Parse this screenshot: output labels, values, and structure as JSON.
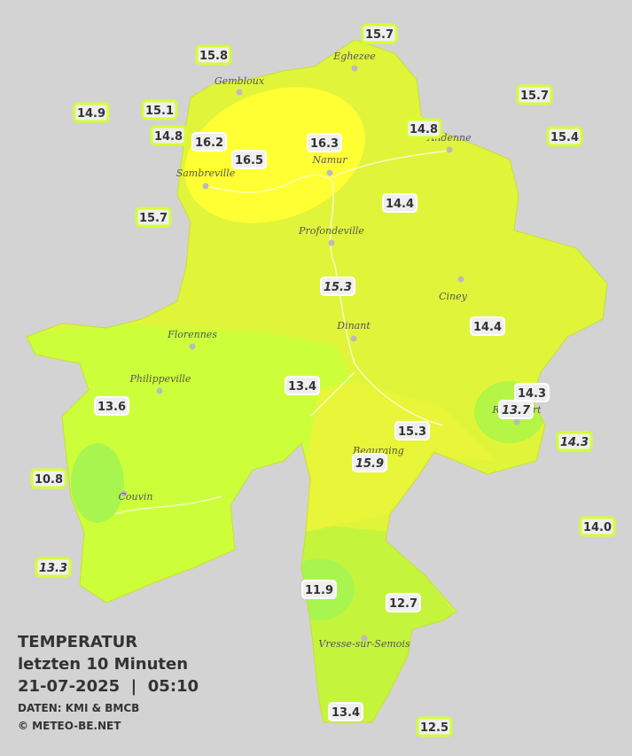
{
  "legend": {
    "title": "TEMPERATUR",
    "subtitle": "letzten 10 Minuten",
    "datetime": "21-07-2025  |  05:10",
    "source": "DATEN: KMI & BMCB",
    "credit": "© METEO-BE.NET"
  },
  "cities": [
    "Eghezee",
    "Gembloux",
    "Andenne",
    "Namur",
    "Sambreville",
    "Profondeville",
    "Ciney",
    "Dinant",
    "Florennes",
    "Philippeville",
    "Rochefort",
    "Beauraing",
    "Couvin",
    "Vresse-sur-Semois"
  ],
  "stations": [
    "15.7",
    "15.8",
    "15.7",
    "14.9",
    "15.1",
    "14.8",
    "15.4",
    "14.8",
    "16.2",
    "16.3",
    "16.5",
    "14.4",
    "15.7",
    "15.3",
    "14.4",
    "13.4",
    "14.3",
    "13.7",
    "13.6",
    "15.3",
    "14.3",
    "15.9",
    "10.8",
    "14.0",
    "13.3",
    "11.9",
    "12.7",
    "13.4",
    "12.5"
  ]
}
